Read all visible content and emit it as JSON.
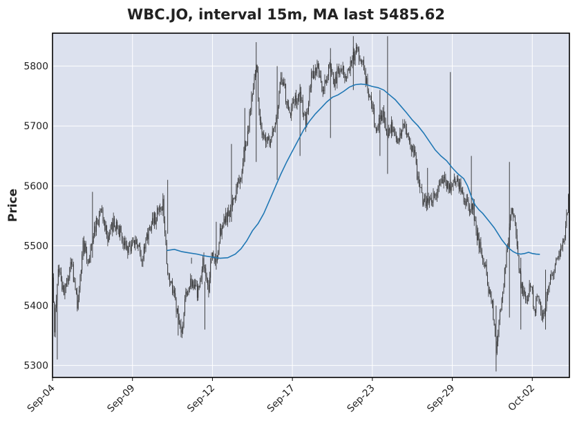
{
  "chart_data": {
    "type": "candlestick",
    "title": "WBC.JO, interval 15m, MA last 5485.62",
    "ylabel": "Price",
    "xlabel": "",
    "ylim": [
      5280,
      5855
    ],
    "y_ticks": [
      5300,
      5400,
      5500,
      5600,
      5700,
      5800
    ],
    "x_tick_labels": [
      "Sep-04",
      "Sep-09",
      "Sep-12",
      "Sep-17",
      "Sep-23",
      "Sep-29",
      "Oct-02"
    ],
    "grid": true,
    "colors": {
      "background": "#dce1ee",
      "grid": "#ffffff",
      "candle": "#2b2b2b",
      "ma_line": "#1f77b4",
      "frame": "#000000"
    },
    "price_path": [
      [
        0,
        5440
      ],
      [
        2,
        5360
      ],
      [
        6,
        5460
      ],
      [
        12,
        5420
      ],
      [
        20,
        5470
      ],
      [
        26,
        5400
      ],
      [
        32,
        5500
      ],
      [
        38,
        5480
      ],
      [
        44,
        5530
      ],
      [
        52,
        5560
      ],
      [
        58,
        5510
      ],
      [
        64,
        5540
      ],
      [
        72,
        5520
      ],
      [
        78,
        5490
      ],
      [
        86,
        5510
      ],
      [
        94,
        5480
      ],
      [
        100,
        5520
      ],
      [
        106,
        5540
      ],
      [
        112,
        5560
      ],
      [
        116,
        5570
      ],
      [
        120,
        5470
      ],
      [
        126,
        5430
      ],
      [
        132,
        5380
      ],
      [
        136,
        5360
      ],
      [
        140,
        5420
      ],
      [
        146,
        5440
      ],
      [
        152,
        5420
      ],
      [
        158,
        5470
      ],
      [
        164,
        5430
      ],
      [
        168,
        5490
      ],
      [
        172,
        5480
      ],
      [
        176,
        5520
      ],
      [
        180,
        5540
      ],
      [
        186,
        5560
      ],
      [
        192,
        5590
      ],
      [
        198,
        5620
      ],
      [
        202,
        5660
      ],
      [
        206,
        5700
      ],
      [
        210,
        5760
      ],
      [
        214,
        5810
      ],
      [
        218,
        5700
      ],
      [
        222,
        5680
      ],
      [
        228,
        5670
      ],
      [
        232,
        5700
      ],
      [
        236,
        5720
      ],
      [
        240,
        5780
      ],
      [
        244,
        5760
      ],
      [
        248,
        5720
      ],
      [
        254,
        5740
      ],
      [
        260,
        5760
      ],
      [
        266,
        5700
      ],
      [
        272,
        5780
      ],
      [
        278,
        5800
      ],
      [
        284,
        5760
      ],
      [
        290,
        5800
      ],
      [
        296,
        5770
      ],
      [
        302,
        5800
      ],
      [
        308,
        5780
      ],
      [
        314,
        5810
      ],
      [
        320,
        5830
      ],
      [
        326,
        5800
      ],
      [
        330,
        5770
      ],
      [
        334,
        5740
      ],
      [
        340,
        5700
      ],
      [
        346,
        5720
      ],
      [
        352,
        5690
      ],
      [
        358,
        5700
      ],
      [
        364,
        5670
      ],
      [
        368,
        5700
      ],
      [
        374,
        5680
      ],
      [
        380,
        5650
      ],
      [
        384,
        5610
      ],
      [
        388,
        5580
      ],
      [
        394,
        5570
      ],
      [
        400,
        5580
      ],
      [
        406,
        5600
      ],
      [
        412,
        5610
      ],
      [
        418,
        5600
      ],
      [
        424,
        5610
      ],
      [
        430,
        5590
      ],
      [
        436,
        5570
      ],
      [
        442,
        5560
      ],
      [
        446,
        5520
      ],
      [
        450,
        5490
      ],
      [
        454,
        5470
      ],
      [
        458,
        5430
      ],
      [
        462,
        5400
      ],
      [
        466,
        5330
      ],
      [
        470,
        5390
      ],
      [
        474,
        5440
      ],
      [
        478,
        5500
      ],
      [
        482,
        5560
      ],
      [
        486,
        5540
      ],
      [
        490,
        5460
      ],
      [
        494,
        5420
      ],
      [
        498,
        5400
      ],
      [
        502,
        5440
      ],
      [
        506,
        5390
      ],
      [
        510,
        5420
      ],
      [
        514,
        5380
      ],
      [
        518,
        5400
      ],
      [
        522,
        5440
      ],
      [
        526,
        5460
      ],
      [
        530,
        5480
      ],
      [
        534,
        5500
      ],
      [
        538,
        5520
      ],
      [
        541,
        5560
      ],
      [
        543,
        5590
      ]
    ],
    "ma_path": [
      [
        120,
        5492
      ],
      [
        128,
        5494
      ],
      [
        136,
        5490
      ],
      [
        144,
        5488
      ],
      [
        152,
        5486
      ],
      [
        160,
        5483
      ],
      [
        168,
        5481
      ],
      [
        176,
        5479
      ],
      [
        184,
        5480
      ],
      [
        192,
        5486
      ],
      [
        198,
        5495
      ],
      [
        204,
        5508
      ],
      [
        210,
        5525
      ],
      [
        216,
        5537
      ],
      [
        222,
        5554
      ],
      [
        228,
        5576
      ],
      [
        234,
        5598
      ],
      [
        240,
        5620
      ],
      [
        246,
        5640
      ],
      [
        252,
        5658
      ],
      [
        258,
        5676
      ],
      [
        264,
        5694
      ],
      [
        270,
        5708
      ],
      [
        276,
        5720
      ],
      [
        282,
        5730
      ],
      [
        288,
        5740
      ],
      [
        294,
        5748
      ],
      [
        300,
        5752
      ],
      [
        306,
        5758
      ],
      [
        312,
        5765
      ],
      [
        318,
        5769
      ],
      [
        324,
        5770
      ],
      [
        330,
        5769
      ],
      [
        336,
        5766
      ],
      [
        342,
        5764
      ],
      [
        348,
        5760
      ],
      [
        354,
        5752
      ],
      [
        360,
        5744
      ],
      [
        366,
        5733
      ],
      [
        372,
        5722
      ],
      [
        378,
        5710
      ],
      [
        384,
        5700
      ],
      [
        390,
        5688
      ],
      [
        396,
        5674
      ],
      [
        402,
        5660
      ],
      [
        408,
        5650
      ],
      [
        414,
        5642
      ],
      [
        420,
        5630
      ],
      [
        426,
        5620
      ],
      [
        432,
        5612
      ],
      [
        436,
        5600
      ],
      [
        440,
        5582
      ],
      [
        444,
        5568
      ],
      [
        448,
        5560
      ],
      [
        452,
        5554
      ],
      [
        456,
        5546
      ],
      [
        460,
        5538
      ],
      [
        464,
        5530
      ],
      [
        468,
        5520
      ],
      [
        472,
        5510
      ],
      [
        476,
        5502
      ],
      [
        480,
        5495
      ],
      [
        484,
        5490
      ],
      [
        488,
        5487
      ],
      [
        492,
        5486
      ],
      [
        496,
        5487
      ],
      [
        500,
        5489
      ],
      [
        504,
        5487
      ],
      [
        508,
        5486
      ],
      [
        512,
        5485.62
      ]
    ],
    "spikes": [
      [
        5,
        5310,
        5420
      ],
      [
        42,
        5480,
        5590
      ],
      [
        121,
        5520,
        5610
      ],
      [
        132,
        5350,
        5400
      ],
      [
        146,
        5480,
        5470
      ],
      [
        160,
        5360,
        5440
      ],
      [
        172,
        5460,
        5540
      ],
      [
        188,
        5540,
        5670
      ],
      [
        202,
        5640,
        5730
      ],
      [
        214,
        5640,
        5840
      ],
      [
        236,
        5610,
        5800
      ],
      [
        260,
        5650,
        5770
      ],
      [
        292,
        5680,
        5830
      ],
      [
        316,
        5760,
        5850
      ],
      [
        344,
        5650,
        5760
      ],
      [
        352,
        5620,
        5850
      ],
      [
        394,
        5560,
        5630
      ],
      [
        418,
        5590,
        5790
      ],
      [
        440,
        5560,
        5650
      ],
      [
        466,
        5290,
        5400
      ],
      [
        480,
        5380,
        5640
      ],
      [
        492,
        5360,
        5480
      ],
      [
        518,
        5360,
        5460
      ]
    ],
    "ma_last": 5485.62
  }
}
